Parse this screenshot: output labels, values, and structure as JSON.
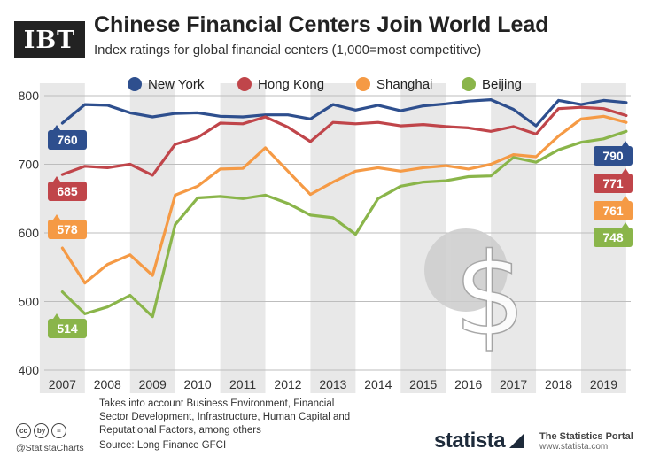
{
  "header": {
    "logo": "IBT",
    "title": "Chinese Financial Centers Join World Lead",
    "subtitle": "Index ratings for global financial centers (1,000=most competitive)"
  },
  "footer": {
    "note": "Takes into account Business Environment, Financial Sector Development, Infrastructure, Human Capital and Reputational Factors, among others",
    "source": "Source: Long Finance GFCI",
    "handle": "@StatistaCharts",
    "brand": "statista",
    "portal_title": "The Statistics Portal",
    "portal_url": "www.statista.com",
    "cc_icons": [
      "cc",
      "by",
      "="
    ]
  },
  "chart_data": {
    "type": "line",
    "x": [
      2007,
      2007.5,
      2008,
      2008.5,
      2009,
      2009.5,
      2010,
      2010.5,
      2011,
      2011.5,
      2012,
      2012.5,
      2013,
      2013.5,
      2014,
      2014.5,
      2015,
      2015.5,
      2016,
      2016.5,
      2017,
      2017.5,
      2018,
      2018.5,
      2019,
      2019.5
    ],
    "xticks": [
      "2007",
      "2008",
      "2009",
      "2010",
      "2011",
      "2012",
      "2013",
      "2014",
      "2015",
      "2016",
      "2017",
      "2018",
      "2019"
    ],
    "ylim": [
      400,
      800
    ],
    "yticks": [
      400,
      500,
      600,
      700,
      800
    ],
    "grid": true,
    "legend": "top",
    "series": [
      {
        "name": "New York",
        "color": "#2e4f8e",
        "values": [
          760,
          787,
          786,
          775,
          769,
          774,
          775,
          770,
          769,
          772,
          772,
          766,
          787,
          779,
          786,
          778,
          785,
          788,
          792,
          794,
          780,
          756,
          793,
          787,
          793,
          790
        ],
        "start_label": "760",
        "end_label": "790"
      },
      {
        "name": "Hong Kong",
        "color": "#c0454a",
        "values": [
          685,
          697,
          695,
          700,
          684,
          729,
          739,
          760,
          759,
          769,
          754,
          733,
          761,
          759,
          761,
          756,
          758,
          755,
          753,
          748,
          755,
          744,
          781,
          783,
          781,
          771
        ],
        "start_label": "685",
        "end_label": "771"
      },
      {
        "name": "Shanghai",
        "color": "#f59a45",
        "values": [
          578,
          527,
          554,
          568,
          538,
          655,
          668,
          693,
          694,
          724,
          690,
          656,
          674,
          690,
          695,
          690,
          695,
          698,
          693,
          700,
          714,
          711,
          741,
          766,
          770,
          761
        ],
        "start_label": "578",
        "end_label": "761"
      },
      {
        "name": "Beijing",
        "color": "#8ab54a",
        "values": [
          514,
          482,
          492,
          509,
          478,
          612,
          651,
          653,
          650,
          655,
          643,
          626,
          622,
          598,
          650,
          668,
          674,
          676,
          682,
          683,
          710,
          703,
          721,
          732,
          737,
          748
        ],
        "start_label": "514",
        "end_label": "748"
      }
    ]
  }
}
